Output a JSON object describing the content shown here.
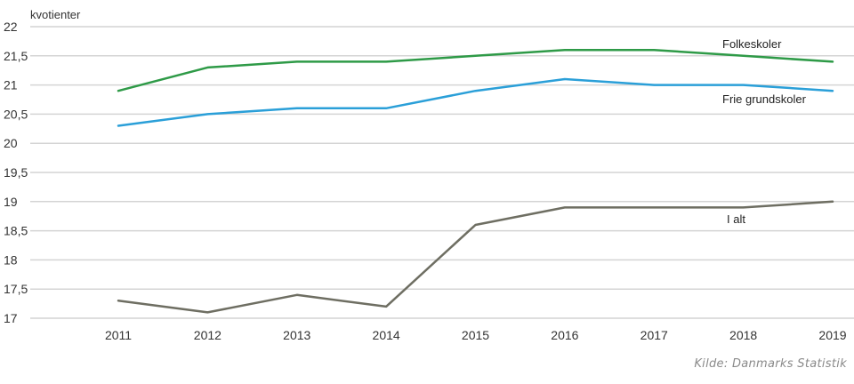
{
  "chart_data": {
    "type": "line",
    "title": "",
    "xlabel": "",
    "ylabel": "kvotienter",
    "categories": [
      "2011",
      "2012",
      "2013",
      "2014",
      "2015",
      "2016",
      "2017",
      "2018",
      "2019"
    ],
    "ylim": [
      17,
      22
    ],
    "yticks": [
      17,
      17.5,
      18,
      18.5,
      19,
      19.5,
      20,
      20.5,
      21,
      21.5,
      22
    ],
    "ytick_labels": [
      "17",
      "17,5",
      "18",
      "18,5",
      "19",
      "19,5",
      "20",
      "20,5",
      "21",
      "21,5",
      "22"
    ],
    "grid": true,
    "legend": "inline labels at line ends",
    "series": [
      {
        "name": "Folkeskoler",
        "color": "#2e9a47",
        "values": [
          20.9,
          21.3,
          21.4,
          21.4,
          21.5,
          21.6,
          21.6,
          21.5,
          21.4
        ]
      },
      {
        "name": "Frie grundskoler",
        "color": "#2a9fd8",
        "values": [
          20.3,
          20.5,
          20.6,
          20.6,
          20.9,
          21.1,
          21.0,
          21.0,
          20.9
        ]
      },
      {
        "name": "I alt",
        "color": "#6e6e62",
        "values": [
          17.3,
          17.1,
          17.4,
          17.2,
          18.6,
          18.9,
          18.9,
          18.9,
          19.0
        ]
      }
    ]
  },
  "source": "Kilde: Danmarks Statistik"
}
